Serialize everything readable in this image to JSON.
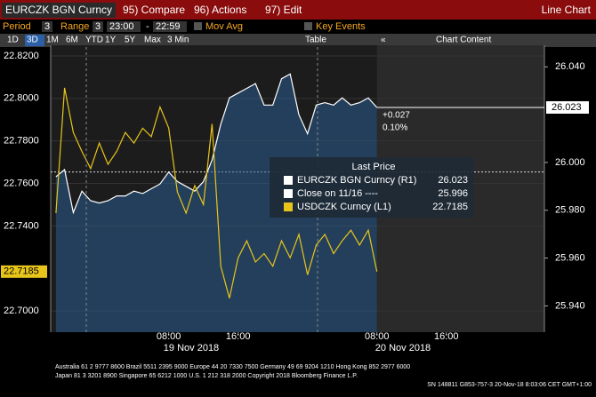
{
  "ui": {
    "security": "EURCZK BGN Curncy",
    "menu": [
      "95) Compare",
      "96) Actions",
      "97) Edit"
    ],
    "view": "Line Chart",
    "settings": [
      "Period",
      "3",
      "Range",
      "3",
      "23:00",
      "-",
      "22:59",
      "Mov Avg",
      "Key Events"
    ],
    "periods": [
      "1D",
      "3D",
      "1M",
      "6M",
      "YTD",
      "1Y",
      "5Y",
      "Max",
      "3 Min"
    ],
    "tools": [
      "Table",
      "Chart Content"
    ],
    "footer": [
      "Australia 61 2 9777 8600  Brazil 5511 2395 9000  Europe 44 20 7330 7500  Germany 49 69 9204 1210  Hong Kong 852 2977 6000",
      "Japan 81 3 3201 8900        Singapore 65 6212 1000        U.S. 1 212 318 2000        Copyright 2018 Bloomberg Finance L.P.",
      "SN 148811 G853-757-3 20-Nov-18  8:03:06 CET  GMT+1:00"
    ]
  },
  "chart_data": {
    "type": "line",
    "x": [
      -5,
      -4,
      -3,
      -2,
      -1,
      0,
      1,
      2,
      3,
      4,
      5,
      6,
      7,
      8,
      9,
      10,
      11,
      12,
      13,
      14,
      15,
      16,
      17,
      18,
      19,
      20,
      21,
      22,
      23,
      24,
      25,
      26,
      27,
      28,
      29,
      30,
      31,
      32
    ],
    "xlim": [
      -5.6,
      51.3
    ],
    "xticks": [
      {
        "value": 8,
        "label": "08:00"
      },
      {
        "value": 16,
        "label": "16:00"
      },
      {
        "value": 32,
        "label": "08:00"
      },
      {
        "value": 40,
        "label": "16:00"
      }
    ],
    "date_labels": [
      "19 Nov 2018",
      "20 Nov 2018"
    ],
    "ylim": [
      22.69,
      22.825
    ],
    "yticks": [
      {
        "value": 22.82,
        "label": "22.8200"
      },
      {
        "value": 22.8,
        "label": "22.8000"
      },
      {
        "value": 22.78,
        "label": "22.7800"
      },
      {
        "value": 22.76,
        "label": "22.7600"
      },
      {
        "value": 22.74,
        "label": "22.7400"
      },
      {
        "value": 22.7,
        "label": "22.7000"
      }
    ],
    "y2lim": [
      25.929,
      26.049
    ],
    "y2ticks": [
      {
        "value": 26.04,
        "label": "26.040"
      },
      {
        "value": 26.0,
        "label": "26.000"
      },
      {
        "value": 25.98,
        "label": "25.980"
      },
      {
        "value": 25.96,
        "label": "25.960"
      },
      {
        "value": 25.94,
        "label": "25.940"
      }
    ],
    "legend_title": "Last Price",
    "series": [
      {
        "name": "EURCZK BGN Curncy (R1)",
        "color": "#ffffff",
        "axis": "y2",
        "area": true,
        "values": [
          25.994,
          25.997,
          25.979,
          25.988,
          25.984,
          25.983,
          25.984,
          25.986,
          25.986,
          25.988,
          25.987,
          25.989,
          25.991,
          25.996,
          25.992,
          25.99,
          25.988,
          25.992,
          26.001,
          26.016,
          26.027,
          26.029,
          26.031,
          26.033,
          26.024,
          26.024,
          26.035,
          26.037,
          26.02,
          26.012,
          26.024,
          26.025,
          26.024,
          26.027,
          26.024,
          26.025,
          26.027,
          26.023
        ]
      },
      {
        "name": "USDCZK Curncy (L1)",
        "color": "#e8c51a",
        "values": [
          22.746,
          22.805,
          22.784,
          22.775,
          22.767,
          22.779,
          22.769,
          22.775,
          22.784,
          22.779,
          22.786,
          22.782,
          22.796,
          22.786,
          22.756,
          22.746,
          22.759,
          22.75,
          22.788,
          22.721,
          22.706,
          22.725,
          22.733,
          22.723,
          22.727,
          22.721,
          22.733,
          22.725,
          22.736,
          22.717,
          22.731,
          22.736,
          22.727,
          22.733,
          22.738,
          22.731,
          22.738,
          22.7185
        ]
      }
    ],
    "reference": {
      "name": "Close on 11/16 ----",
      "value": 25.996,
      "axis": "y2"
    },
    "annotations": [
      "+0.027",
      "0.10%"
    ]
  }
}
